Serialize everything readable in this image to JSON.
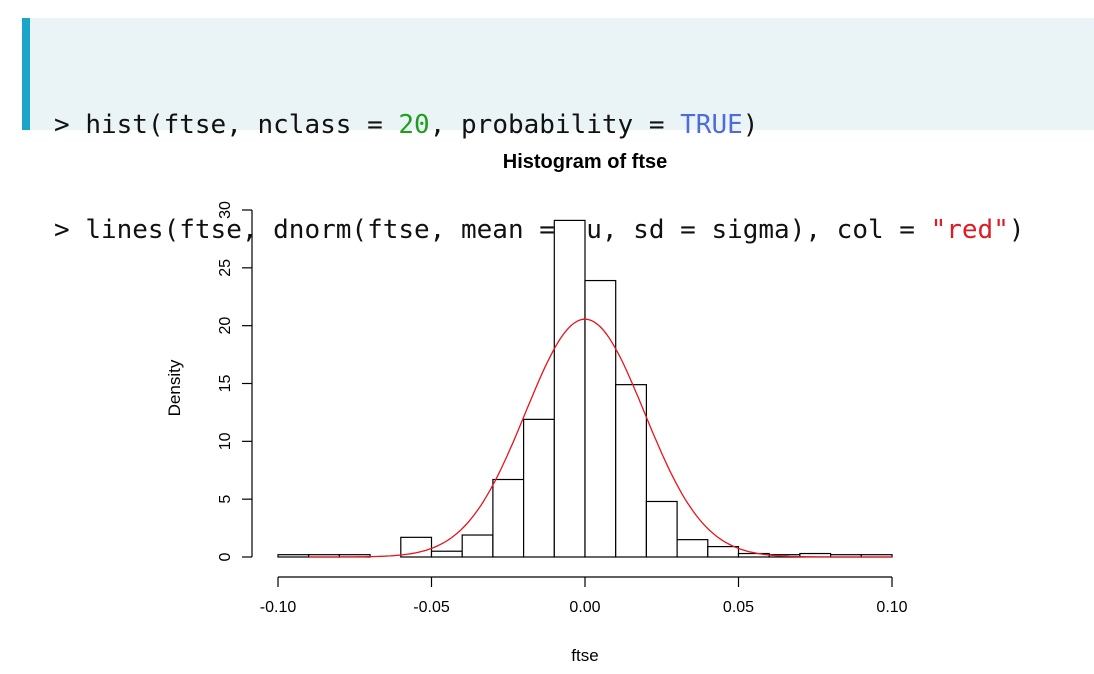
{
  "code": {
    "line1": {
      "prompt": "> ",
      "pre": "hist(ftse, nclass = ",
      "num": "20",
      "mid": ", probability = ",
      "kw": "TRUE",
      "post": ")"
    },
    "line2": {
      "prompt": "> ",
      "pre": "lines(ftse, dnorm(ftse, mean = mu, sd = sigma), col = ",
      "str": "\"red\"",
      "post": ")"
    }
  },
  "colors": {
    "code_bg": "#eaf4f7",
    "code_accent": "#1ba5c9",
    "number": "#1e9e1e",
    "keyword": "#4f6bd8",
    "string": "#e01b22",
    "curve": "#e8141b"
  },
  "chart_data": {
    "type": "bar",
    "title": "Histogram of ftse",
    "xlabel": "ftse",
    "ylabel": "Density",
    "xlim": [
      -0.1,
      0.1
    ],
    "ylim": [
      0,
      30
    ],
    "x_ticks": [
      -0.1,
      -0.05,
      0.0,
      0.05,
      0.1
    ],
    "x_tick_labels": [
      "-0.10",
      "-0.05",
      "0.00",
      "0.05",
      "0.10"
    ],
    "y_ticks": [
      0,
      5,
      10,
      15,
      20,
      25,
      30
    ],
    "y_tick_labels": [
      "0",
      "5",
      "10",
      "15",
      "20",
      "25",
      "30"
    ],
    "bin_width": 0.01,
    "bins": [
      {
        "start": -0.1,
        "density": 0.2
      },
      {
        "start": -0.09,
        "density": 0.2
      },
      {
        "start": -0.08,
        "density": 0.2
      },
      {
        "start": -0.07,
        "density": 0.0
      },
      {
        "start": -0.06,
        "density": 1.7
      },
      {
        "start": -0.05,
        "density": 0.5
      },
      {
        "start": -0.04,
        "density": 1.9
      },
      {
        "start": -0.03,
        "density": 6.7
      },
      {
        "start": -0.02,
        "density": 11.9
      },
      {
        "start": -0.01,
        "density": 29.1
      },
      {
        "start": 0.0,
        "density": 23.9
      },
      {
        "start": 0.01,
        "density": 14.9
      },
      {
        "start": 0.02,
        "density": 4.8
      },
      {
        "start": 0.03,
        "density": 1.5
      },
      {
        "start": 0.04,
        "density": 0.9
      },
      {
        "start": 0.05,
        "density": 0.3
      },
      {
        "start": 0.06,
        "density": 0.2
      },
      {
        "start": 0.07,
        "density": 0.3
      },
      {
        "start": 0.08,
        "density": 0.2
      },
      {
        "start": 0.09,
        "density": 0.2
      }
    ],
    "curve": {
      "type": "normal_density",
      "mean": 0.0,
      "sd": 0.0194,
      "x_range": [
        -0.09,
        0.1
      ],
      "peak": 20.5
    }
  }
}
